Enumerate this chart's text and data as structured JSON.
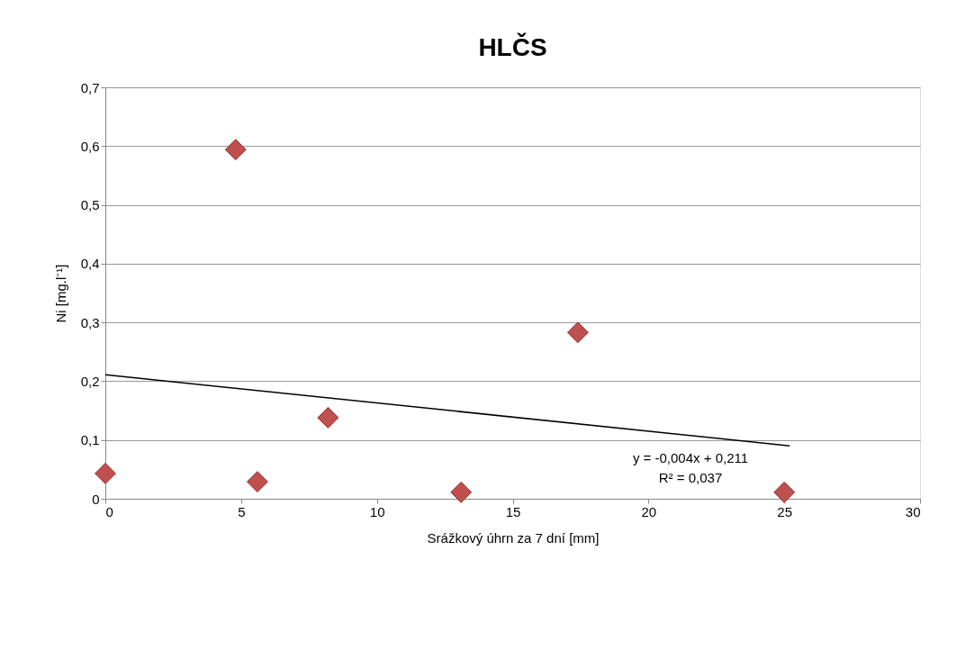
{
  "chart_data": {
    "type": "scatter",
    "title": "HLČS",
    "xlabel": "Srážkový úhrn za 7 dní [mm]",
    "ylabel": "Ni [mg.l⁻¹]",
    "x": [
      0,
      4.8,
      5.6,
      8.2,
      13.1,
      17.4,
      25.0
    ],
    "series": [
      {
        "color": "#c0504d",
        "values": [
          0.043,
          0.594,
          0.029,
          0.138,
          0.011,
          0.283,
          0.011
        ],
        "marker": "diamond"
      },
      {
        "type": "line",
        "color": "#000000",
        "x": [
          0,
          25.2
        ],
        "values": [
          0.211,
          0.09
        ],
        "marker": "none"
      }
    ],
    "xlim": [
      0,
      30
    ],
    "xticks": [
      0,
      5,
      10,
      15,
      20,
      25,
      30
    ],
    "ylim": [
      0,
      0.7
    ],
    "yticks": [
      {
        "value": 0,
        "label": "0"
      },
      {
        "value": 0.1,
        "label": "0,1"
      },
      {
        "value": 0.2,
        "label": "0,2"
      },
      {
        "value": 0.3,
        "label": "0,3"
      },
      {
        "value": 0.4,
        "label": "0,4"
      },
      {
        "value": 0.5,
        "label": "0,5"
      },
      {
        "value": 0.6,
        "label": "0,6"
      },
      {
        "value": 0.7,
        "label": "0,7"
      }
    ],
    "grid": "y",
    "annotations": [
      "y = -0,004x + 0,211",
      "R² = 0,037"
    ]
  }
}
